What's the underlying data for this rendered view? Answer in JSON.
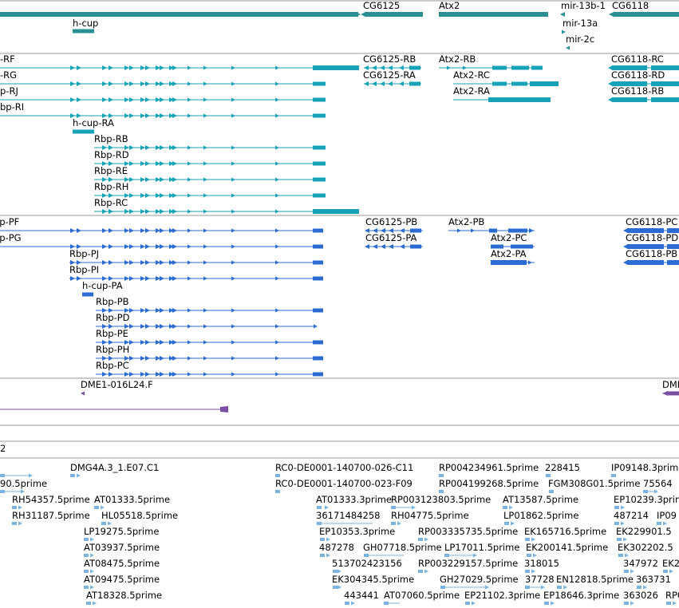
{
  "colors": {
    "gene": "#2a8f93",
    "transcript_a": "#17a2b8",
    "transcript_b": "#2c6bd1",
    "clone": "#7a4fa3",
    "est": "#7db3de"
  },
  "gene_track": {
    "genes": [
      {
        "label": "CG6125"
      },
      {
        "label": "Atx2"
      },
      {
        "label": "mir-13b-1"
      },
      {
        "label": "CG6118"
      },
      {
        "label": "h-cup"
      },
      {
        "label": "mir-13a"
      },
      {
        "label": "mir-2c"
      }
    ]
  },
  "transcripts_a": {
    "rows": [
      {
        "labels": [
          "-RF",
          "CG6125-RB",
          "Atx2-RB",
          "CG6118-RC"
        ]
      },
      {
        "labels": [
          "-RG",
          "CG6125-RA",
          "Atx2-RC",
          "CG6118-RD"
        ]
      },
      {
        "labels": [
          "p-RJ",
          "Atx2-RA",
          "CG6118-RB"
        ]
      },
      {
        "labels": [
          "bp-RI"
        ]
      },
      {
        "labels": [
          "h-cup-RA"
        ]
      },
      {
        "labels": [
          "Rbp-RB"
        ]
      },
      {
        "labels": [
          "Rbp-RD"
        ]
      },
      {
        "labels": [
          "Rbp-RE"
        ]
      },
      {
        "labels": [
          "Rbp-RH"
        ]
      },
      {
        "labels": [
          "Rbp-RC"
        ]
      }
    ]
  },
  "transcripts_b": {
    "rows": [
      {
        "labels": [
          "bp-PF",
          "CG6125-PB",
          "Atx2-PB",
          "CG6118-PC"
        ]
      },
      {
        "labels": [
          "bp-PG",
          "CG6125-PA",
          "Atx2-PC",
          "CG6118-PD"
        ]
      },
      {
        "labels": [
          "Rbp-PJ",
          "Atx2-PA",
          "CG6118-PB"
        ]
      },
      {
        "labels": [
          "Rbp-PI"
        ]
      },
      {
        "labels": [
          "h-cup-PA"
        ]
      },
      {
        "labels": [
          "Rbp-PB"
        ]
      },
      {
        "labels": [
          "Rbp-PD"
        ]
      },
      {
        "labels": [
          "Rbp-PE"
        ]
      },
      {
        "labels": [
          "Rbp-PH"
        ]
      },
      {
        "labels": [
          "Rbp-PC"
        ]
      }
    ]
  },
  "clone_track": {
    "labels": [
      "DME1-016L24.F",
      "DMI"
    ]
  },
  "empty_track": {
    "label": "2"
  },
  "est_track": {
    "rows": [
      [
        "DMG4A.3_1.E07.C1",
        "RC0-DE0001-140700-026-C11",
        "RP004234961.5prime",
        "228415",
        "IP09148.3prime"
      ],
      [
        "90.5prime",
        "RC0-DE0001-140700-023-F09",
        "RP004199268.5prime",
        "FGM308G01.5prime",
        "75564"
      ],
      [
        "RH54357.5prime",
        "AT01333.5prime",
        "AT01333.3prime",
        "RP003123803.5prime",
        "AT13587.5prime",
        "EP10239.3prime"
      ],
      [
        "RH31187.5prime",
        "HL05518.5prime",
        "36171484258",
        "RH04775.5prime",
        "LP01862.5prime",
        "487214",
        "IP09"
      ],
      [
        "LP19275.5prime",
        "EP10353.3prime",
        "RP003335735.5prime",
        "EK165716.5prime",
        "EK229901.5"
      ],
      [
        "AT03937.5prime",
        "487278",
        "GH07718.5prime",
        "LP17011.5prime",
        "EK200141.5prime",
        "EK302202.5"
      ],
      [
        "AT08475.5prime",
        "513702423156",
        "RP003229157.5prime",
        "318015",
        "347972",
        "EK2"
      ],
      [
        "AT09475.5prime",
        "EK304345.5prime",
        "GH27029.5prime",
        "37728",
        "EN12818.5prime",
        "363731"
      ],
      [
        "AT18328.5prime",
        "443441",
        "AT07060.5prime",
        "EP21102.3prime",
        "EP18646.3prime",
        "363026",
        "RP0"
      ]
    ]
  }
}
